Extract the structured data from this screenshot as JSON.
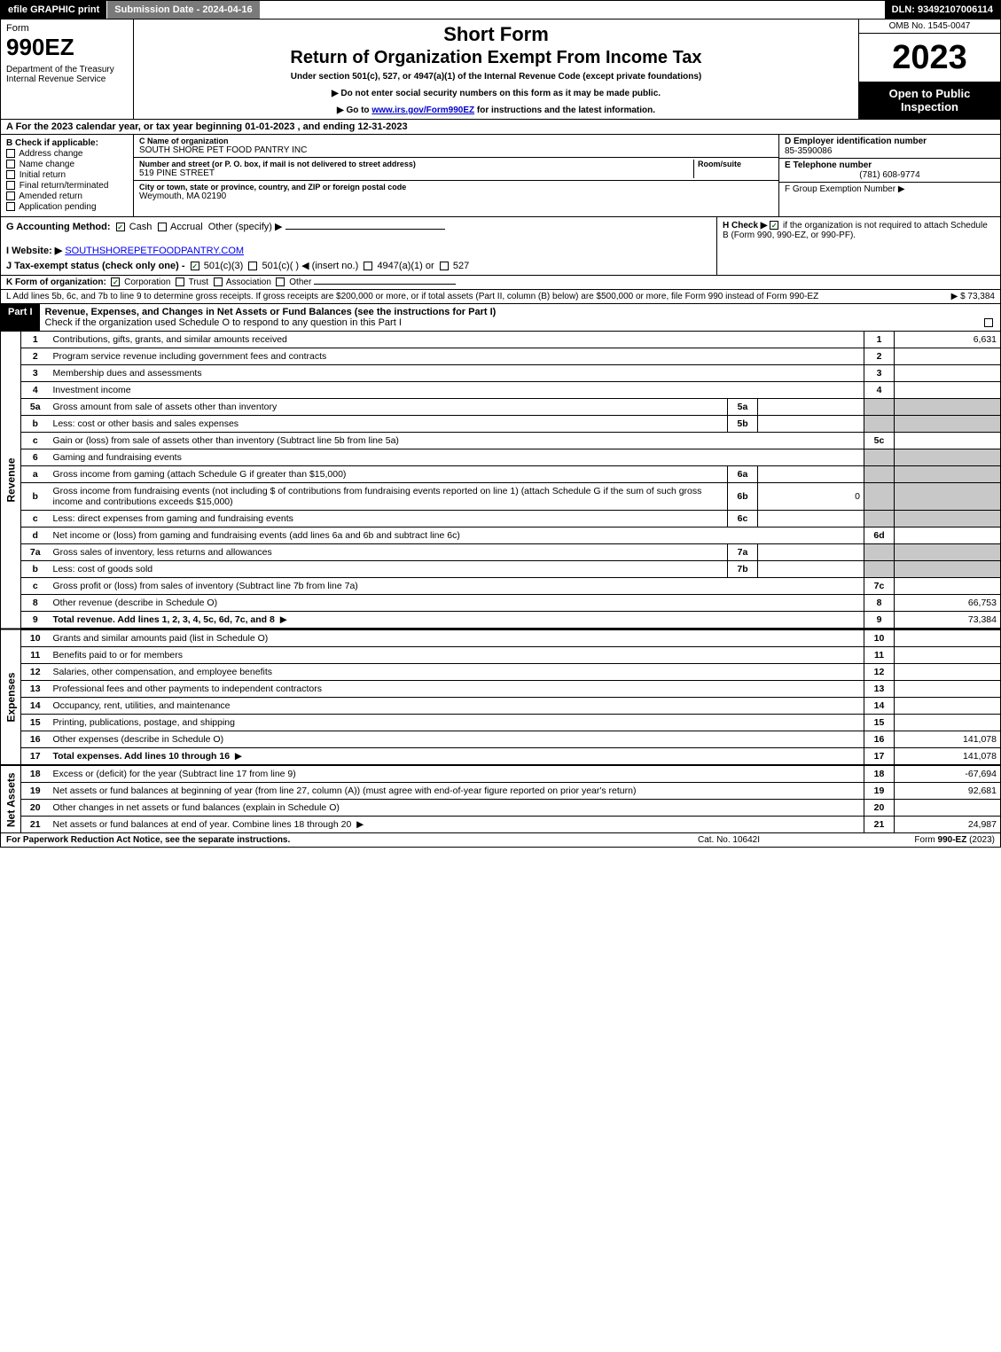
{
  "topbar": {
    "efile": "efile GRAPHIC print",
    "submission": "Submission Date - 2024-04-16",
    "dln": "DLN: 93492107006114"
  },
  "header": {
    "form_word": "Form",
    "form_number": "990EZ",
    "department": "Department of the Treasury\nInternal Revenue Service",
    "short_form": "Short Form",
    "title": "Return of Organization Exempt From Income Tax",
    "under": "Under section 501(c), 527, or 4947(a)(1) of the Internal Revenue Code (except private foundations)",
    "note1": "▶ Do not enter social security numbers on this form as it may be made public.",
    "note2_pre": "▶ Go to ",
    "note2_link": "www.irs.gov/Form990EZ",
    "note2_post": " for instructions and the latest information.",
    "omb": "OMB No. 1545-0047",
    "year": "2023",
    "open": "Open to Public Inspection"
  },
  "line_a": "A  For the 2023 calendar year, or tax year beginning 01-01-2023 , and ending 12-31-2023",
  "section_b": {
    "label": "B  Check if applicable:",
    "opts": [
      "Address change",
      "Name change",
      "Initial return",
      "Final return/terminated",
      "Amended return",
      "Application pending"
    ]
  },
  "section_c": {
    "name_label": "C Name of organization",
    "name": "SOUTH SHORE PET FOOD PANTRY INC",
    "addr_label": "Number and street (or P. O. box, if mail is not delivered to street address)",
    "room_label": "Room/suite",
    "addr": "519 PINE STREET",
    "city_label": "City or town, state or province, country, and ZIP or foreign postal code",
    "city": "Weymouth, MA  02190"
  },
  "section_d": {
    "d_label": "D Employer identification number",
    "d_val": "85-3590086",
    "e_label": "E Telephone number",
    "e_val": "(781) 608-9774",
    "f_label": "F Group Exemption Number  ▶"
  },
  "section_g": {
    "g_label": "G Accounting Method:",
    "g_cash": "Cash",
    "g_accrual": "Accrual",
    "g_other": "Other (specify) ▶",
    "i_label": "I Website: ▶",
    "i_val": "SOUTHSHOREPETFOODPANTRY.COM",
    "j_label": "J Tax-exempt status (check only one) -",
    "j_1": "501(c)(3)",
    "j_2": "501(c)( ) ◀ (insert no.)",
    "j_3": "4947(a)(1) or",
    "j_4": "527"
  },
  "section_h": {
    "h_label": "H  Check ▶",
    "h_text": "if the organization is not required to attach Schedule B (Form 990, 990-EZ, or 990-PF)."
  },
  "line_k": {
    "label": "K Form of organization:",
    "opts": [
      "Corporation",
      "Trust",
      "Association",
      "Other"
    ]
  },
  "line_l": {
    "text": "L Add lines 5b, 6c, and 7b to line 9 to determine gross receipts. If gross receipts are $200,000 or more, or if total assets (Part II, column (B) below) are $500,000 or more, file Form 990 instead of Form 990-EZ",
    "amount": "▶ $ 73,384"
  },
  "part1": {
    "label": "Part I",
    "title": "Revenue, Expenses, and Changes in Net Assets or Fund Balances (see the instructions for Part I)",
    "check": "Check if the organization used Schedule O to respond to any question in this Part I"
  },
  "sides": {
    "revenue": "Revenue",
    "expenses": "Expenses",
    "netassets": "Net Assets"
  },
  "rows": [
    {
      "ln": "1",
      "desc": "Contributions, gifts, grants, and similar amounts received",
      "num": "1",
      "val": "6,631"
    },
    {
      "ln": "2",
      "desc": "Program service revenue including government fees and contracts",
      "num": "2",
      "val": ""
    },
    {
      "ln": "3",
      "desc": "Membership dues and assessments",
      "num": "3",
      "val": ""
    },
    {
      "ln": "4",
      "desc": "Investment income",
      "num": "4",
      "val": ""
    },
    {
      "ln": "5a",
      "desc": "Gross amount from sale of assets other than inventory",
      "sub": "5a",
      "subval": "",
      "shade": true
    },
    {
      "ln": "b",
      "desc": "Less: cost or other basis and sales expenses",
      "sub": "5b",
      "subval": "",
      "shade": true
    },
    {
      "ln": "c",
      "desc": "Gain or (loss) from sale of assets other than inventory (Subtract line 5b from line 5a)",
      "num": "5c",
      "val": ""
    },
    {
      "ln": "6",
      "desc": "Gaming and fundraising events",
      "shade": true
    },
    {
      "ln": "a",
      "desc": "Gross income from gaming (attach Schedule G if greater than $15,000)",
      "sub": "6a",
      "subval": "",
      "shade": true
    },
    {
      "ln": "b",
      "desc": "Gross income from fundraising events (not including $                    of contributions from fundraising events reported on line 1) (attach Schedule G if the sum of such gross income and contributions exceeds $15,000)",
      "sub": "6b",
      "subval": "0",
      "shade": true
    },
    {
      "ln": "c",
      "desc": "Less: direct expenses from gaming and fundraising events",
      "sub": "6c",
      "subval": "",
      "shade": true
    },
    {
      "ln": "d",
      "desc": "Net income or (loss) from gaming and fundraising events (add lines 6a and 6b and subtract line 6c)",
      "num": "6d",
      "val": ""
    },
    {
      "ln": "7a",
      "desc": "Gross sales of inventory, less returns and allowances",
      "sub": "7a",
      "subval": "",
      "shade": true
    },
    {
      "ln": "b",
      "desc": "Less: cost of goods sold",
      "sub": "7b",
      "subval": "",
      "shade": true
    },
    {
      "ln": "c",
      "desc": "Gross profit or (loss) from sales of inventory (Subtract line 7b from line 7a)",
      "num": "7c",
      "val": ""
    },
    {
      "ln": "8",
      "desc": "Other revenue (describe in Schedule O)",
      "num": "8",
      "val": "66,753"
    },
    {
      "ln": "9",
      "desc": "Total revenue. Add lines 1, 2, 3, 4, 5c, 6d, 7c, and 8",
      "num": "9",
      "val": "73,384",
      "bold": true,
      "arrow": true
    }
  ],
  "rows_exp": [
    {
      "ln": "10",
      "desc": "Grants and similar amounts paid (list in Schedule O)",
      "num": "10",
      "val": ""
    },
    {
      "ln": "11",
      "desc": "Benefits paid to or for members",
      "num": "11",
      "val": ""
    },
    {
      "ln": "12",
      "desc": "Salaries, other compensation, and employee benefits",
      "num": "12",
      "val": ""
    },
    {
      "ln": "13",
      "desc": "Professional fees and other payments to independent contractors",
      "num": "13",
      "val": ""
    },
    {
      "ln": "14",
      "desc": "Occupancy, rent, utilities, and maintenance",
      "num": "14",
      "val": ""
    },
    {
      "ln": "15",
      "desc": "Printing, publications, postage, and shipping",
      "num": "15",
      "val": ""
    },
    {
      "ln": "16",
      "desc": "Other expenses (describe in Schedule O)",
      "num": "16",
      "val": "141,078"
    },
    {
      "ln": "17",
      "desc": "Total expenses. Add lines 10 through 16",
      "num": "17",
      "val": "141,078",
      "bold": true,
      "arrow": true
    }
  ],
  "rows_net": [
    {
      "ln": "18",
      "desc": "Excess or (deficit) for the year (Subtract line 17 from line 9)",
      "num": "18",
      "val": "-67,694"
    },
    {
      "ln": "19",
      "desc": "Net assets or fund balances at beginning of year (from line 27, column (A)) (must agree with end-of-year figure reported on prior year's return)",
      "num": "19",
      "val": "92,681"
    },
    {
      "ln": "20",
      "desc": "Other changes in net assets or fund balances (explain in Schedule O)",
      "num": "20",
      "val": ""
    },
    {
      "ln": "21",
      "desc": "Net assets or fund balances at end of year. Combine lines 18 through 20",
      "num": "21",
      "val": "24,987",
      "arrow": true
    }
  ],
  "footer": {
    "left": "For Paperwork Reduction Act Notice, see the separate instructions.",
    "mid": "Cat. No. 10642I",
    "right": "Form 990-EZ (2023)"
  }
}
